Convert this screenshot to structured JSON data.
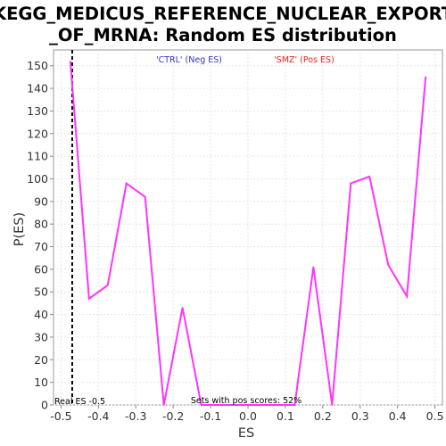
{
  "chart_data": {
    "type": "line",
    "title_line1": "KEGG_MEDICUS_REFERENCE_NUCLEAR_EXPORT",
    "title_line2": "_OF_MRNA: Random ES distribution",
    "xlabel": "ES",
    "ylabel": "P(ES)",
    "xlim": [
      -0.52,
      0.52
    ],
    "ylim": [
      0,
      157
    ],
    "x_ticks": [
      -0.5,
      -0.4,
      -0.3,
      -0.2,
      -0.1,
      0.0,
      0.1,
      0.2,
      0.3,
      0.4,
      0.5
    ],
    "x_tick_labels": [
      "-0.5",
      "-0.4",
      "-0.3",
      "-0.2",
      "-0.1",
      "0.0",
      "0.1",
      "0.2",
      "0.3",
      "0.4",
      "0.5"
    ],
    "y_ticks": [
      0,
      10,
      20,
      30,
      40,
      50,
      60,
      70,
      80,
      90,
      100,
      110,
      120,
      130,
      140,
      150
    ],
    "grid": true,
    "series": [
      {
        "color": "#ff33ff",
        "x": [
          -0.475,
          -0.425,
          -0.375,
          -0.325,
          -0.275,
          -0.225,
          -0.175,
          -0.125,
          -0.075,
          -0.025,
          0.025,
          0.075,
          0.125,
          0.175,
          0.225,
          0.275,
          0.325,
          0.375,
          0.425,
          0.475
        ],
        "y": [
          152,
          47,
          53,
          98,
          92,
          0,
          43,
          0,
          0,
          0,
          0,
          0,
          0,
          61,
          0,
          98,
          101,
          62,
          48,
          145
        ]
      }
    ],
    "real_es": {
      "value": -0.47,
      "label": "Real ES -0.5"
    },
    "legend": {
      "neg_label": "'CTRL' (Neg ES)",
      "neg_color": "#3333cc",
      "pos_label": "'SMZ' (Pos ES)",
      "pos_color": "#ee2222"
    },
    "annotation": "Sets with pos scores: 52%"
  }
}
